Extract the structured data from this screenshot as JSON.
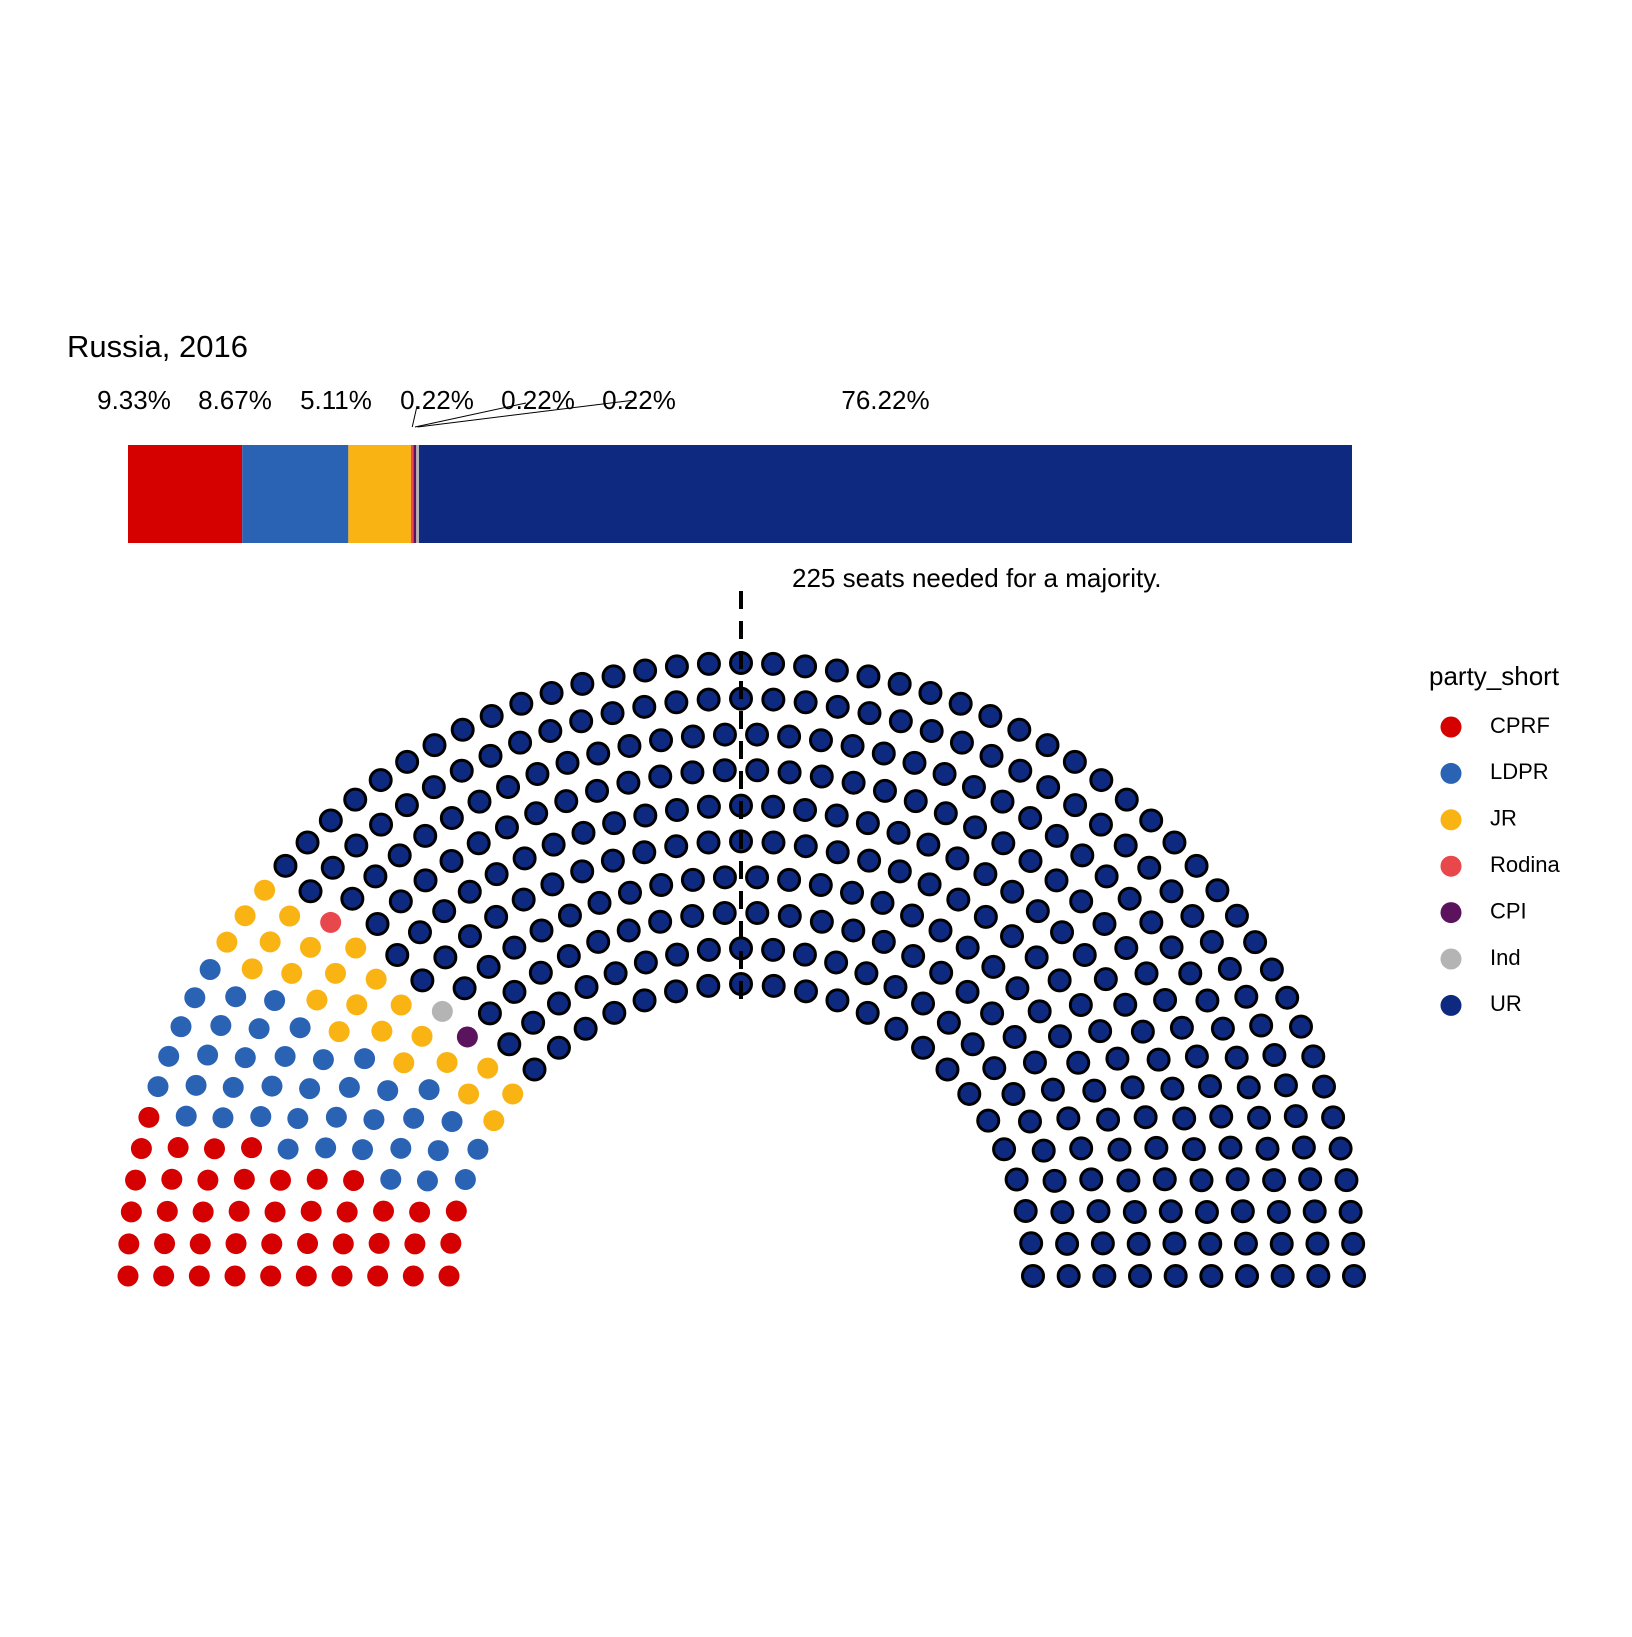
{
  "chart_data": {
    "type": "parliament",
    "title": "Russia, 2016",
    "annotation": "225 seats needed for a majority.",
    "majority": 225,
    "legend_title": "party_short",
    "legend_position": "right",
    "series": [
      {
        "name": "CPRF",
        "color": "#d50000",
        "seats": 42,
        "value": 9.33,
        "value_label": "9.33%",
        "outline": false
      },
      {
        "name": "LDPR",
        "color": "#2a62b4",
        "seats": 39,
        "value": 8.67,
        "value_label": "8.67%",
        "outline": false
      },
      {
        "name": "JR",
        "color": "#f9b313",
        "seats": 23,
        "value": 5.11,
        "value_label": "5.11%",
        "outline": false
      },
      {
        "name": "Rodina",
        "color": "#e8474c",
        "seats": 1,
        "value": 0.22,
        "value_label": "0.22%",
        "outline": false
      },
      {
        "name": "CPI",
        "color": "#5c135d",
        "seats": 1,
        "value": 0.22,
        "value_label": "0.22%",
        "outline": false
      },
      {
        "name": "Ind",
        "color": "#b4b4b4",
        "seats": 1,
        "value": 0.22,
        "value_label": "0.22%",
        "outline": false
      },
      {
        "name": "UR",
        "color": "#0e2a80",
        "seats": 343,
        "value": 76.22,
        "value_label": "76.22%",
        "outline": true
      }
    ]
  }
}
